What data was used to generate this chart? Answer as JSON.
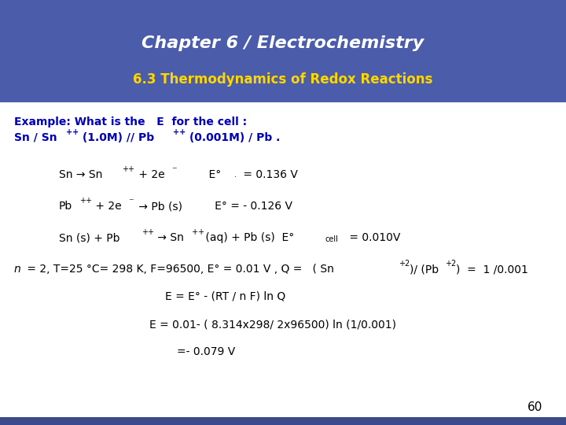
{
  "title": "Chapter 6 / Electrochemistry",
  "subtitle": "6.3 Thermodynamics of Redox Reactions",
  "title_color": "#FFFFFF",
  "subtitle_color": "#FFD700",
  "header_bg_color": "#4B5DAA",
  "body_bg_color": "#FFFFFF",
  "footer_bg_color": "#3A4A8A",
  "slide_number": "60",
  "flask_colors": [
    "#C44060",
    "#9B3A6E",
    "#7A2A80"
  ],
  "logo_color": "#2E7D32"
}
